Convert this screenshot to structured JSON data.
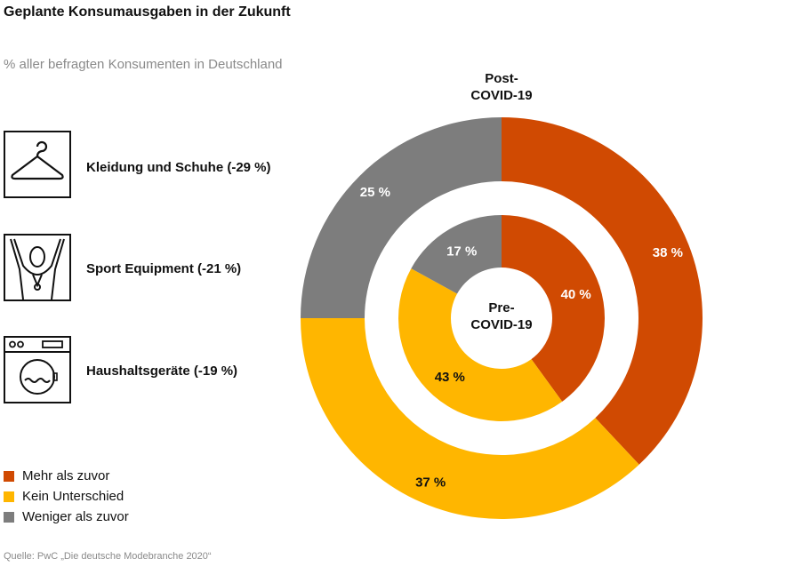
{
  "title": "Geplante Konsumausgaben in der Zukunft",
  "subtitle": "% aller befragten Konsumenten in Deutschland",
  "categories": [
    {
      "label": "Kleidung und Schuhe (-29 %)",
      "icon": "hanger-icon"
    },
    {
      "label": "Sport Equipment (-21 %)",
      "icon": "athlete-icon"
    },
    {
      "label": "Haushaltsgeräte (-19 %)",
      "icon": "washing-machine-icon"
    }
  ],
  "legend": [
    {
      "label": "Mehr als zuvor",
      "color": "#d04a02"
    },
    {
      "label": "Kein Unterschied",
      "color": "#ffb600"
    },
    {
      "label": "Weniger als zuvor",
      "color": "#7d7d7d"
    }
  ],
  "source": "Quelle: PwC „Die deutsche Modebranche 2020“",
  "chart_data": {
    "type": "pie",
    "categories": [
      "Mehr als zuvor",
      "Kein Unterschied",
      "Weniger als zuvor"
    ],
    "colors": [
      "#d04a02",
      "#ffb600",
      "#7d7d7d"
    ],
    "series": [
      {
        "name": "Post-COVID-19",
        "title_lines": [
          "Post-",
          "COVID-19"
        ],
        "ring": "outer",
        "values": [
          38,
          37,
          25
        ],
        "labels": [
          "38 %",
          "37 %",
          "25 %"
        ]
      },
      {
        "name": "Pre-COVID-19",
        "title_lines": [
          "Pre-",
          "COVID-19"
        ],
        "ring": "inner",
        "values": [
          40,
          43,
          17
        ],
        "labels": [
          "40 %",
          "43 %",
          "17 %"
        ]
      }
    ]
  }
}
